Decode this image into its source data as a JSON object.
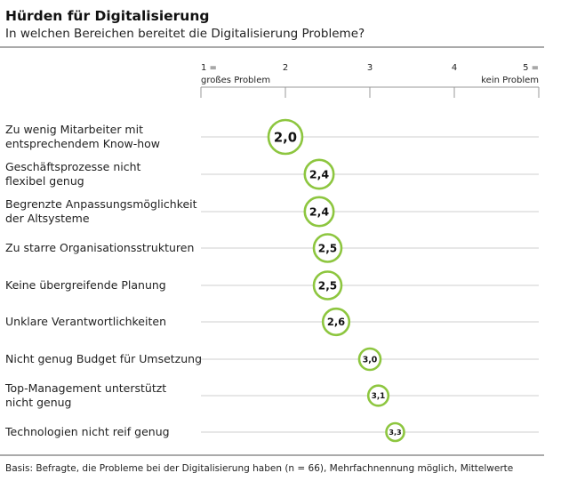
{
  "chart_data": {
    "type": "scatter",
    "title": "Hürden für Digitalisierung",
    "subtitle": "In welchen Bereichen bereitet die Digitalisierung Probleme?",
    "xlim": [
      1,
      5
    ],
    "ticks": [
      {
        "value": 1,
        "label": "1 =",
        "sublabel": "großes Problem"
      },
      {
        "value": 2,
        "label": "2",
        "sublabel": ""
      },
      {
        "value": 3,
        "label": "3",
        "sublabel": ""
      },
      {
        "value": 4,
        "label": "4",
        "sublabel": ""
      },
      {
        "value": 5,
        "label": "5 =",
        "sublabel": "kein Problem"
      }
    ],
    "series": [
      {
        "name": "Mittelwert",
        "values": [
          2.0,
          2.4,
          2.4,
          2.5,
          2.5,
          2.6,
          3.0,
          3.1,
          3.3
        ]
      }
    ],
    "categories": [
      [
        "Zu wenig Mitarbeiter mit",
        "entsprechendem Know-how"
      ],
      [
        "Geschäftsprozesse nicht",
        "flexibel genug"
      ],
      [
        "Begrenzte Anpassungsmöglichkeit",
        "der Altsysteme"
      ],
      [
        "Zu starre Organisationsstrukturen"
      ],
      [
        "Keine übergreifende Planung"
      ],
      [
        "Unklare Verantwortlichkeiten"
      ],
      [
        "Nicht genug Budget für Umsetzung"
      ],
      [
        "Top-Management unterstützt",
        "nicht genug"
      ],
      [
        "Technologien nicht reif genug"
      ]
    ],
    "value_labels": [
      "2,0",
      "2,4",
      "2,4",
      "2,5",
      "2,5",
      "2,6",
      "3,0",
      "3,1",
      "3,3"
    ],
    "footnote": "Basis: Befragte, die Probleme bei der Digitalisierung haben (n = 66), Mehrfachnennung möglich, Mittelwerte",
    "colors": {
      "accent": "#8dc63f",
      "grid": "#cfcfcf",
      "text": "#222222",
      "rule": "#555555"
    }
  }
}
